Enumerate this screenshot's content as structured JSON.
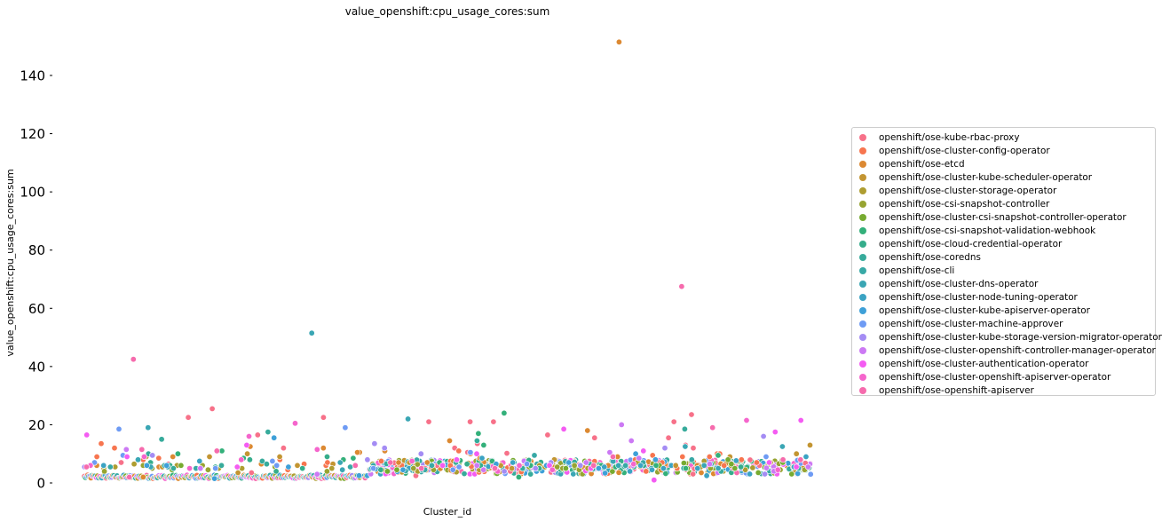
{
  "chart_data": {
    "type": "scatter",
    "title": "value_openshift:cpu_usage_cores:sum",
    "xlabel": "Cluster_id",
    "ylabel": "value_openshift:cpu_usage_cores:sum",
    "ylim": [
      -2,
      155
    ],
    "yticks": [
      0,
      20,
      40,
      60,
      80,
      100,
      120,
      140
    ],
    "xticks": [],
    "grid": false,
    "legend_position": "center-right",
    "series": [
      {
        "name": "openshift/ose-kube-rbac-proxy",
        "color": "#f77189",
        "values": [
          12,
          5,
          10.5,
          10.2,
          12,
          6,
          13,
          7,
          6.5,
          5.5,
          15.5,
          13.5,
          21,
          21,
          25.5,
          16.5,
          22.5,
          22.5,
          12,
          15.5,
          16.5,
          21,
          23.5,
          21,
          2.5,
          4,
          3.5,
          6
        ]
      },
      {
        "name": "openshift/ose-cluster-config-operator",
        "color": "#f7754f",
        "values": [
          8,
          7,
          6,
          8.5,
          4.5,
          7.5,
          6,
          9,
          8,
          6,
          7,
          5,
          9,
          7.5,
          6,
          10,
          8,
          9.5,
          7,
          6,
          5.5,
          8,
          4,
          9,
          11,
          12,
          13.5,
          10,
          6.5,
          5.5
        ]
      },
      {
        "name": "openshift/ose-etcd",
        "color": "#dc8932",
        "values": [
          8.5,
          6,
          6,
          10.5,
          7,
          12.5,
          18,
          10,
          10.5,
          7.5,
          5.5,
          9,
          151.5,
          6,
          8,
          11,
          14.5,
          12,
          6,
          9,
          2,
          5.5,
          7,
          6.5
        ]
      },
      {
        "name": "openshift/ose-cluster-kube-scheduler-operator",
        "color": "#c39532",
        "values": [
          5.5,
          6.5,
          5,
          6,
          5,
          9,
          10,
          10,
          5,
          9,
          7,
          13,
          9,
          8,
          6,
          5.5,
          3.5,
          4.5,
          6,
          7
        ]
      },
      {
        "name": "openshift/ose-cluster-storage-operator",
        "color": "#ae9d31",
        "values": [
          5,
          5.5,
          4.5,
          6,
          5.5,
          5,
          6.5,
          4,
          5.5,
          5,
          6,
          7,
          5,
          4.5,
          5,
          6,
          9,
          7.5
        ]
      },
      {
        "name": "openshift/ose-csi-snapshot-controller",
        "color": "#97a431",
        "values": [
          4.5,
          5,
          6,
          5,
          4.5,
          5.5,
          4,
          6,
          5.5,
          5,
          4,
          5.5,
          6,
          4.5,
          5,
          6.5
        ]
      },
      {
        "name": "openshift/ose-cluster-csi-snapshot-controller-operator",
        "color": "#77ab31",
        "values": [
          5,
          5.5,
          4.5,
          6,
          5,
          7,
          5.5,
          6,
          4.5,
          5,
          6,
          8,
          6.5,
          5,
          4,
          7.5
        ]
      },
      {
        "name": "openshift/ose-csi-snapshot-validation-webhook",
        "color": "#33b07a",
        "values": [
          17,
          7,
          6,
          8,
          5.5,
          24,
          6,
          8.5,
          5,
          9.5,
          11,
          13,
          7.5,
          6,
          8.5,
          6,
          10,
          2,
          7
        ]
      },
      {
        "name": "openshift/ose-cloud-credential-operator",
        "color": "#35ad8b",
        "values": [
          5,
          6,
          4.5,
          5.5,
          9,
          5,
          7,
          6,
          5.5,
          6.5,
          8,
          4,
          7,
          5.5,
          6
        ]
      },
      {
        "name": "openshift/ose-coredns",
        "color": "#37ab9b",
        "values": [
          6,
          5.5,
          17.5,
          5,
          15,
          14.5,
          18.5,
          7,
          6,
          5,
          7.5,
          6.5,
          4,
          10
        ]
      },
      {
        "name": "openshift/ose-cli",
        "color": "#38a9a6",
        "values": [
          5,
          4.5,
          6,
          5.5,
          5,
          9.5,
          6,
          4.5,
          5.5,
          7,
          5,
          8,
          6
        ]
      },
      {
        "name": "openshift/ose-cluster-dns-operator",
        "color": "#3aa6b4",
        "values": [
          4.5,
          6,
          19,
          5.5,
          5,
          22,
          12.5,
          5.5,
          6,
          7,
          51.5,
          12.5,
          8,
          6.5
        ]
      },
      {
        "name": "openshift/ose-cluster-node-tuning-operator",
        "color": "#3ba3c3",
        "values": [
          7,
          5,
          6,
          5.5,
          4.5,
          6,
          5,
          7.5,
          5.5,
          4,
          2.5,
          8.5,
          9
        ]
      },
      {
        "name": "openshift/ose-cluster-kube-apiserver-operator",
        "color": "#3ea0d8",
        "values": [
          6,
          5,
          4.5,
          6.5,
          5.5,
          15.5,
          6,
          7,
          5,
          8,
          1.5,
          6,
          2.5,
          10
        ]
      },
      {
        "name": "openshift/ose-cluster-machine-approver",
        "color": "#6e9bf4",
        "values": [
          9.5,
          4.5,
          6,
          5,
          5.5,
          3,
          10.5,
          7,
          18.5,
          19,
          6.5,
          5,
          7.5,
          9
        ]
      },
      {
        "name": "openshift/ose-cluster-kube-storage-version-migrator-operator",
        "color": "#a48cf4",
        "values": [
          8,
          6,
          5.5,
          10,
          12,
          6.5,
          12,
          16,
          4,
          5,
          9.5,
          7,
          13.5
        ]
      },
      {
        "name": "openshift/ose-cluster-openshift-controller-manager-operator",
        "color": "#cc79f4",
        "values": [
          6.5,
          5,
          4.5,
          8.5,
          5.5,
          20,
          6,
          10.5,
          14.5,
          3,
          7,
          11.5,
          6
        ]
      },
      {
        "name": "openshift/ose-cluster-authentication-operator",
        "color": "#f45cf2",
        "values": [
          7,
          5.5,
          6,
          18.5,
          6,
          17.5,
          5,
          11,
          21.5,
          1,
          9,
          16.5,
          13,
          10,
          8,
          5.5
        ]
      },
      {
        "name": "openshift/ose-cluster-openshift-apiserver-operator",
        "color": "#f565cc",
        "values": [
          6,
          4.5,
          5,
          16,
          8,
          20.5,
          6.5,
          21.5,
          4,
          6,
          9,
          11.5,
          7.5,
          4.5
        ]
      },
      {
        "name": "openshift/ose-openshift-apiserver",
        "color": "#f66bad",
        "values": [
          5,
          6,
          42.5,
          8,
          19,
          7,
          67.5,
          11,
          5.5,
          2,
          9,
          8,
          11.5,
          6,
          5
        ]
      }
    ]
  }
}
